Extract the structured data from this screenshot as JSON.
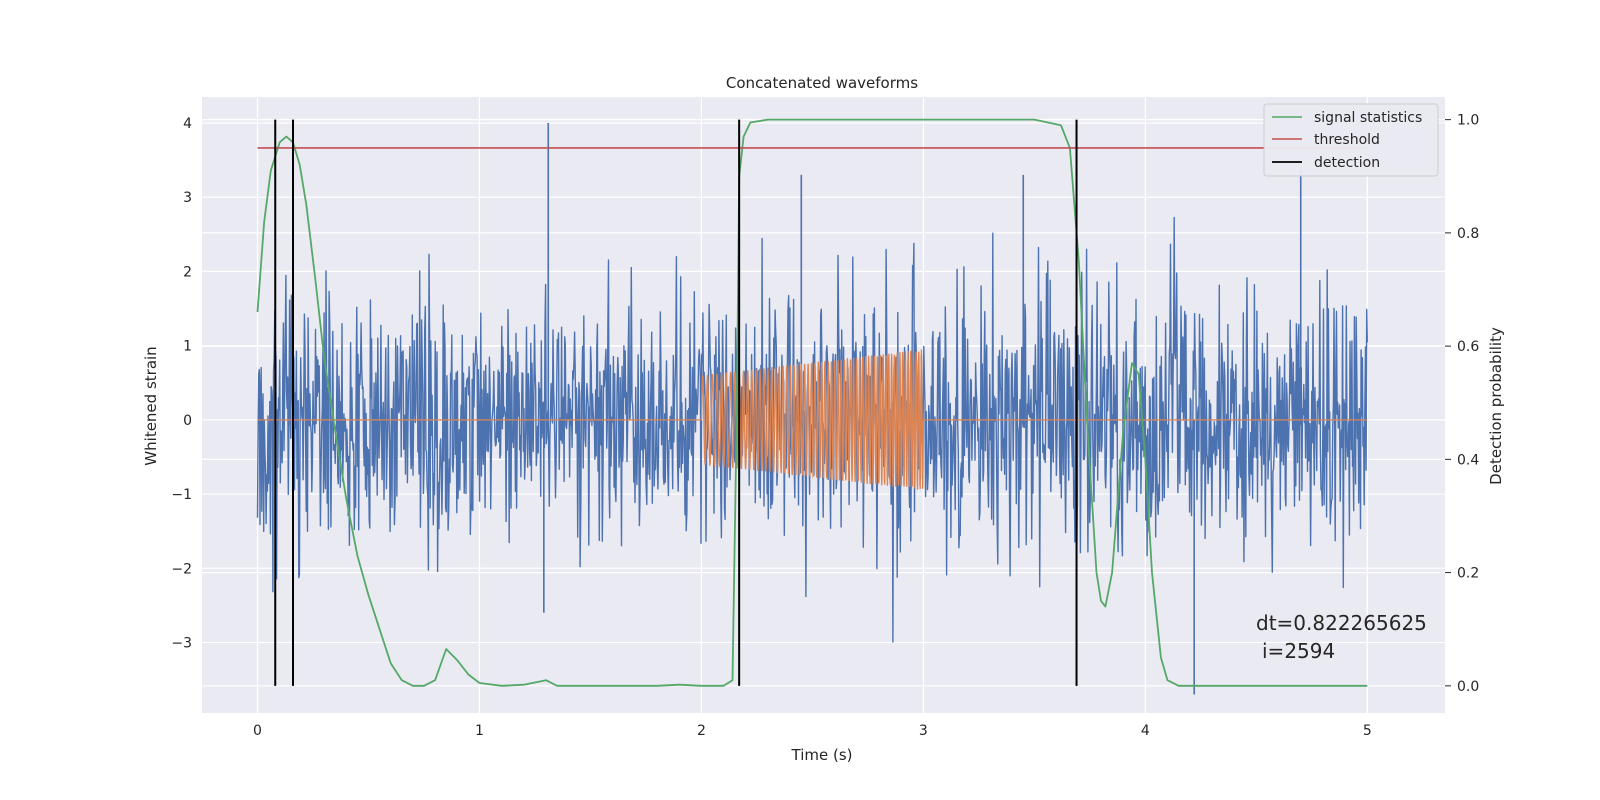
{
  "chart_data": {
    "type": "line",
    "title": "Concatenated waveforms",
    "xlabel": "Time (s)",
    "ylabel": "Whitened strain",
    "ylabel_right": "Detection probability",
    "xlim": [
      -0.25,
      5.35
    ],
    "ylim": [
      -3.95,
      4.35
    ],
    "ylim_right": [
      -0.048,
      1.04
    ],
    "x_ticks": [
      0,
      1,
      2,
      3,
      4,
      5
    ],
    "y_ticks": [
      -3,
      -2,
      -1,
      0,
      1,
      2,
      3,
      4
    ],
    "y_ticks_right": [
      0.0,
      0.2,
      0.4,
      0.6,
      0.8,
      1.0
    ],
    "grid": true,
    "legend_position": "top-right",
    "colors": {
      "strain": "#4c72b0",
      "injection": "#dd8452",
      "signal_statistics": "#55a868",
      "threshold": "#c44e52",
      "detection": "#000000",
      "plot_background": "#eaeaf2",
      "grid": "#ffffff"
    },
    "series": [
      {
        "name": "signal statistics",
        "axis": "right",
        "x": [
          0,
          0.03,
          0.06,
          0.1,
          0.13,
          0.16,
          0.19,
          0.22,
          0.26,
          0.3,
          0.35,
          0.4,
          0.45,
          0.5,
          0.55,
          0.6,
          0.65,
          0.7,
          0.75,
          0.8,
          0.85,
          0.9,
          0.95,
          1.0,
          1.1,
          1.2,
          1.3,
          1.35,
          1.4,
          1.6,
          1.8,
          1.9,
          2.0,
          2.1,
          2.14,
          2.16,
          2.17,
          2.19,
          2.22,
          2.3,
          2.5,
          3.0,
          3.5,
          3.62,
          3.66,
          3.7,
          3.74,
          3.78,
          3.8,
          3.82,
          3.85,
          3.9,
          3.94,
          3.97,
          4.0,
          4.03,
          4.07,
          4.1,
          4.15,
          4.2,
          4.5,
          5.0
        ],
        "y": [
          0.66,
          0.82,
          0.91,
          0.96,
          0.97,
          0.96,
          0.92,
          0.85,
          0.72,
          0.58,
          0.45,
          0.33,
          0.23,
          0.16,
          0.1,
          0.04,
          0.01,
          0.0,
          0.0,
          0.01,
          0.065,
          0.045,
          0.02,
          0.005,
          0.0,
          0.002,
          0.01,
          0.0,
          0.0,
          0.0,
          0.0,
          0.002,
          0.0,
          0.0,
          0.01,
          0.5,
          0.9,
          0.97,
          0.995,
          1.0,
          1.0,
          1.0,
          1.0,
          0.99,
          0.95,
          0.75,
          0.45,
          0.2,
          0.15,
          0.14,
          0.2,
          0.45,
          0.57,
          0.55,
          0.4,
          0.2,
          0.05,
          0.01,
          0.0,
          0.0,
          0.0,
          0.0
        ]
      },
      {
        "name": "threshold",
        "axis": "right",
        "x": [
          0,
          5.0
        ],
        "y": [
          0.95,
          0.95
        ]
      },
      {
        "name": "detection",
        "axis": "right",
        "type": "vlines",
        "x": [
          0.08,
          0.16,
          2.17,
          3.69
        ],
        "ymin": 0.0,
        "ymax": 1.0
      }
    ],
    "strain_noise": {
      "x_range": [
        0,
        5.0
      ],
      "typical_range": [
        -1.9,
        2.2
      ],
      "max": 4.0,
      "min": -3.7
    },
    "injection": {
      "x_range": [
        2.0,
        3.0
      ],
      "amplitude_start": 0.6,
      "amplitude_end": 0.95
    },
    "annotation": {
      "line1": "dt=0.822265625",
      "line2": "i=2594"
    }
  }
}
